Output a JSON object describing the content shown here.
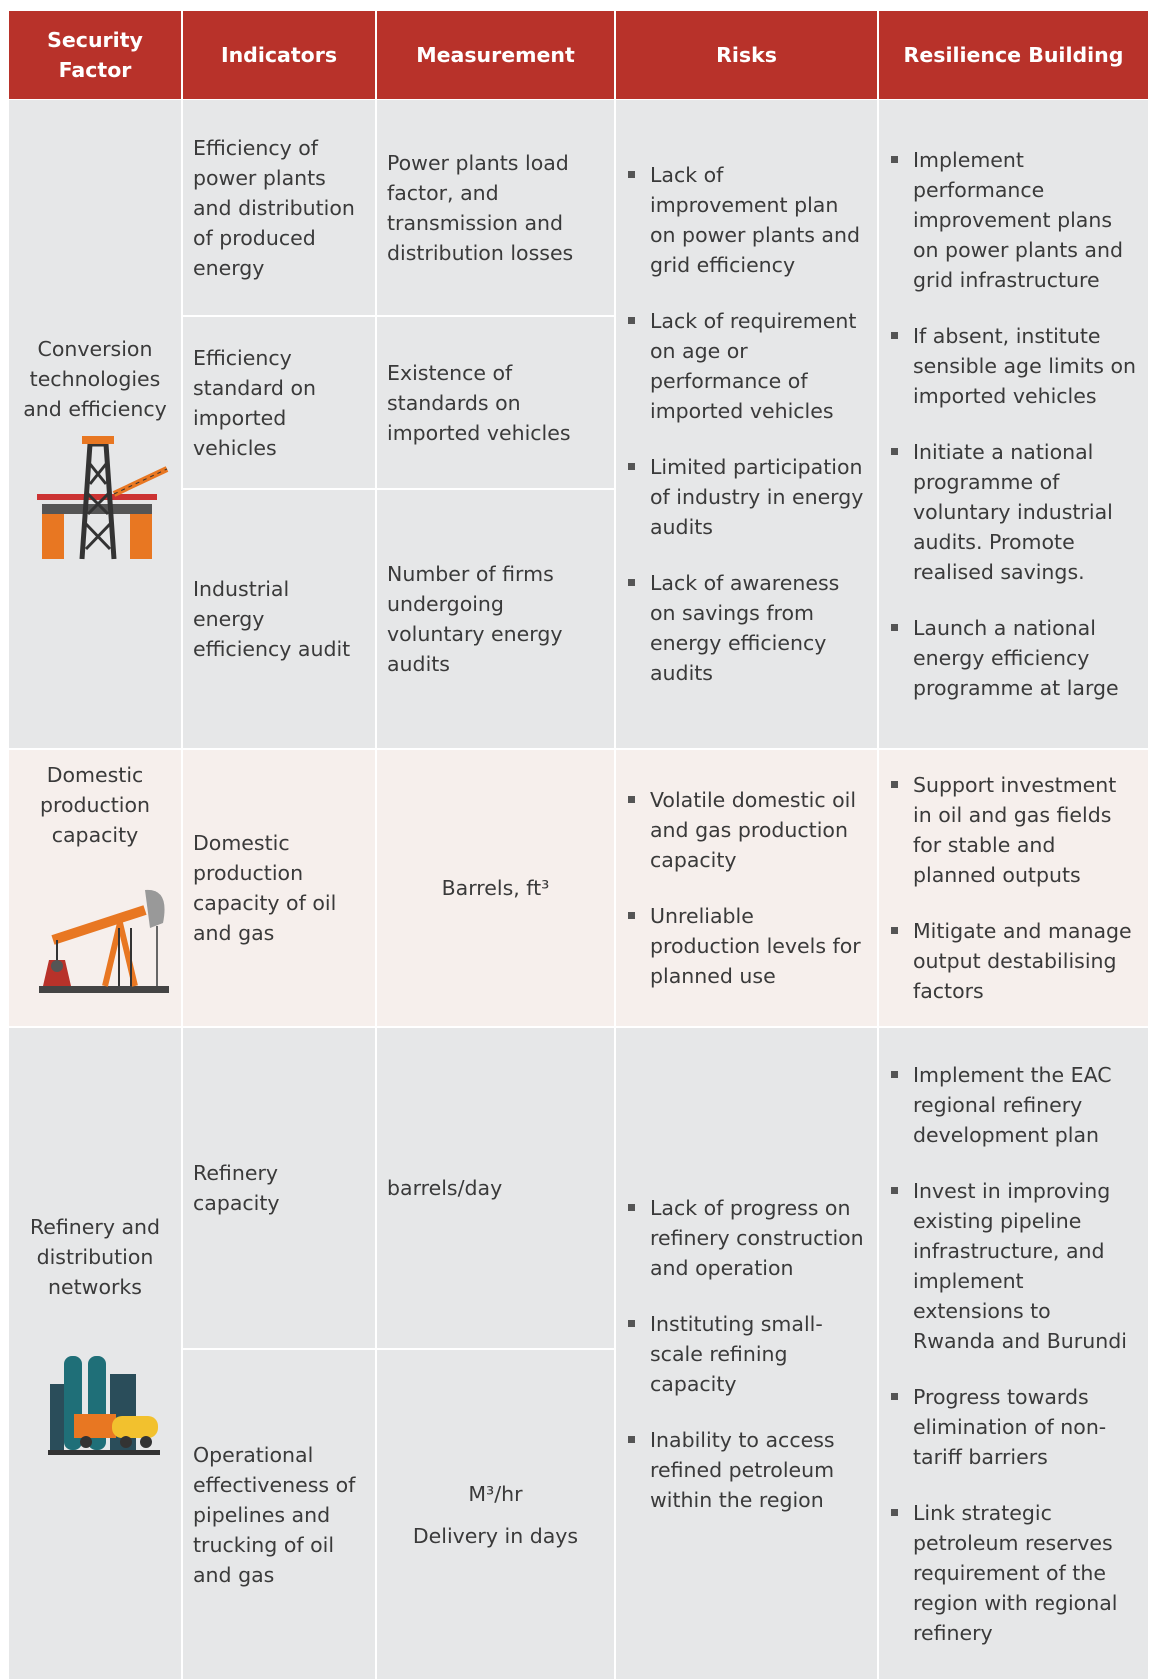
{
  "header": {
    "columns": [
      "Security Factor",
      "Indicators",
      "Measurement",
      "Risks",
      "Resilience Building"
    ]
  },
  "sections": [
    {
      "factor": "Conversion technologies and efficiency",
      "indicators": [
        {
          "indicator": "Efficiency of power plants and distribution of produced energy",
          "measurement": [
            "Power plants load factor, and transmission and distribution losses"
          ]
        },
        {
          "indicator": "Efficiency standard on imported vehicles",
          "measurement": [
            "Existence of standards on imported vehicles"
          ]
        },
        {
          "indicator": "Industrial energy efficiency audit",
          "measurement": [
            "Number of firms undergoing voluntary energy audits"
          ]
        }
      ],
      "risks": [
        "Lack of improvement plan on power plants and grid efficiency",
        "Lack of requirement on age or performance of imported vehicles",
        "Limited participation of industry in energy audits",
        "Lack of awareness on savings from energy efficiency audits"
      ],
      "resilience": [
        "Implement performance improvement plans on power plants and grid infrastructure",
        "If absent, institute sensible age limits on imported vehicles",
        "Initiate a national programme of voluntary industrial audits. Promote realised savings.",
        "Launch a national energy efficiency programme at large"
      ]
    },
    {
      "factor": "Domestic production capacity",
      "indicators": [
        {
          "indicator": "Domestic production capacity of oil and gas",
          "measurement": [
            "Barrels, ft³"
          ]
        }
      ],
      "risks": [
        "Volatile domestic oil and gas production capacity",
        "Unreliable production levels for planned use"
      ],
      "resilience": [
        "Support investment in oil and gas fields for stable and planned outputs",
        "Mitigate and manage output destabilising factors"
      ]
    },
    {
      "factor": "Refinery and distribution networks",
      "indicators": [
        {
          "indicator": "Refinery capacity",
          "measurement": [
            "barrels/day"
          ]
        },
        {
          "indicator": "Operational effectiveness of pipelines and trucking of oil and gas",
          "measurement": [
            "M³/hr",
            "Delivery in days"
          ]
        }
      ],
      "risks": [
        "Lack of progress on refinery construction and operation",
        "Instituting small-scale refining capacity",
        "Inability to access refined petroleum within the region"
      ],
      "resilience": [
        "Implement the EAC regional refinery development plan",
        "Invest in improving existing pipeline infrastructure, and implement extensions to Rwanda and Burundi",
        "Progress towards elimination of non-tariff barriers",
        "Link strategic petroleum reserves requirement of the region with regional refinery"
      ]
    }
  ]
}
